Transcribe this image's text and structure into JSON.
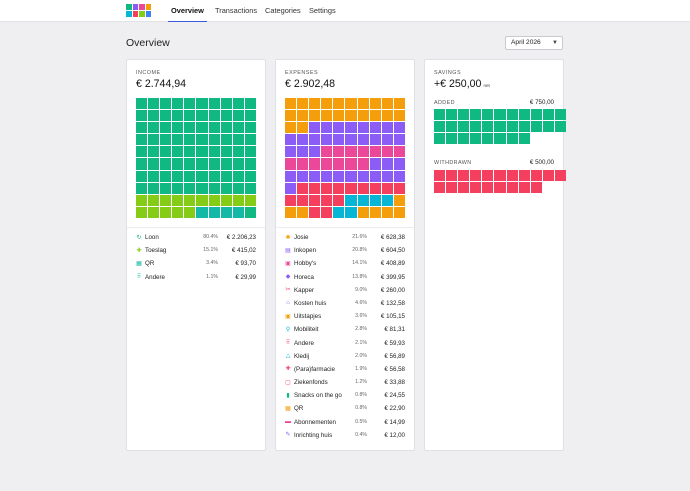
{
  "nav": {
    "tabs": [
      "Overview",
      "Transactions",
      "Categories",
      "Settings"
    ],
    "active": 0
  },
  "page": {
    "title": "Overview",
    "month": "April 2026"
  },
  "colors": {
    "green": "#10b981",
    "lime": "#84cc16",
    "orange": "#f59e0b",
    "purple": "#8b5cf6",
    "pink": "#ec4899",
    "red": "#f43f5e",
    "cyan": "#06b6d4",
    "teal": "#14b8a6"
  },
  "income": {
    "label": "INCOME",
    "total": "€ 2.744,94",
    "cells": [
      {
        "color": "#10b981",
        "count": 80
      },
      {
        "color": "#84cc16",
        "count": 15
      },
      {
        "color": "#14b8a6",
        "count": 4
      },
      {
        "color": "#10b981",
        "count": 1
      }
    ],
    "rows": [
      {
        "icon": "↻",
        "icon_name": "refresh-icon",
        "color": "#10b981",
        "name": "Loon",
        "pct": "80.4%",
        "amount": "€ 2.206,23"
      },
      {
        "icon": "✚",
        "icon_name": "plus-icon",
        "color": "#84cc16",
        "name": "Toeslag",
        "pct": "15.1%",
        "amount": "€ 415,02"
      },
      {
        "icon": "▦",
        "icon_name": "qr-icon",
        "color": "#14b8a6",
        "name": "QR",
        "pct": "3.4%",
        "amount": "€ 93,70"
      },
      {
        "icon": "⠿",
        "icon_name": "dots-icon",
        "color": "#14b8a6",
        "name": "Andere",
        "pct": "1.1%",
        "amount": "€ 29,99"
      }
    ]
  },
  "expenses": {
    "label": "EXPENSES",
    "total": "€ 2.902,48",
    "cells": [
      {
        "color": "#f59e0b",
        "count": 22
      },
      {
        "color": "#8b5cf6",
        "count": 21
      },
      {
        "color": "#ec4899",
        "count": 14
      },
      {
        "color": "#8b5cf6",
        "count": 14
      },
      {
        "color": "#f43f5e",
        "count": 9
      },
      {
        "color": "#f43f5e",
        "count": 5
      },
      {
        "color": "#06b6d4",
        "count": 4
      },
      {
        "color": "#f59e0b",
        "count": 3
      },
      {
        "color": "#f43f5e",
        "count": 2
      },
      {
        "color": "#06b6d4",
        "count": 2
      },
      {
        "color": "#f59e0b",
        "count": 4
      }
    ],
    "rows": [
      {
        "icon": "✱",
        "icon_name": "sun-icon",
        "color": "#f59e0b",
        "name": "Josie",
        "pct": "21.6%",
        "amount": "€ 628,38"
      },
      {
        "icon": "▤",
        "icon_name": "cart-icon",
        "color": "#8b5cf6",
        "name": "Inkopen",
        "pct": "20.8%",
        "amount": "€ 604,50"
      },
      {
        "icon": "▣",
        "icon_name": "hobby-icon",
        "color": "#ec4899",
        "name": "Hobby's",
        "pct": "14.1%",
        "amount": "€ 408,89"
      },
      {
        "icon": "◆",
        "icon_name": "horeca-icon",
        "color": "#8b5cf6",
        "name": "Horeca",
        "pct": "13.8%",
        "amount": "€ 399,95"
      },
      {
        "icon": "✂",
        "icon_name": "scissors-icon",
        "color": "#f43f5e",
        "name": "Kapper",
        "pct": "9.0%",
        "amount": "€ 260,00"
      },
      {
        "icon": "⌂",
        "icon_name": "house-icon",
        "color": "#8b5cf6",
        "name": "Kosten huis",
        "pct": "4.6%",
        "amount": "€ 132,58"
      },
      {
        "icon": "▣",
        "icon_name": "ticket-icon",
        "color": "#f59e0b",
        "name": "Uitstapjes",
        "pct": "3.6%",
        "amount": "€ 105,15"
      },
      {
        "icon": "⚲",
        "icon_name": "location-icon",
        "color": "#06b6d4",
        "name": "Mobiliteit",
        "pct": "2.8%",
        "amount": "€ 81,31"
      },
      {
        "icon": "⠿",
        "icon_name": "dots-icon",
        "color": "#f43f5e",
        "name": "Andere",
        "pct": "2.1%",
        "amount": "€ 59,93"
      },
      {
        "icon": "△",
        "icon_name": "hanger-icon",
        "color": "#06b6d4",
        "name": "Kledij",
        "pct": "2.0%",
        "amount": "€ 56,89"
      },
      {
        "icon": "✚",
        "icon_name": "medical-icon",
        "color": "#f43f5e",
        "name": "(Para)farmacie",
        "pct": "1.9%",
        "amount": "€ 56,58"
      },
      {
        "icon": "▢",
        "icon_name": "health-fund-icon",
        "color": "#f43f5e",
        "name": "Ziekenfonds",
        "pct": "1.2%",
        "amount": "€ 33,88"
      },
      {
        "icon": "▮",
        "icon_name": "bottle-icon",
        "color": "#10b981",
        "name": "Snacks on the go",
        "pct": "0.8%",
        "amount": "€ 24,55"
      },
      {
        "icon": "▦",
        "icon_name": "qr-icon",
        "color": "#f59e0b",
        "name": "QR",
        "pct": "0.8%",
        "amount": "€ 22,90"
      },
      {
        "icon": "▬",
        "icon_name": "card-icon",
        "color": "#ec4899",
        "name": "Abonnementen",
        "pct": "0.5%",
        "amount": "€ 14,99"
      },
      {
        "icon": "✎",
        "icon_name": "brush-icon",
        "color": "#8b5cf6",
        "name": "Inrichting huis",
        "pct": "0.4%",
        "amount": "€ 12,00"
      }
    ]
  },
  "savings": {
    "label": "SAVINGS",
    "total": "+€ 250,00",
    "total_suffix": "net",
    "added": {
      "label": "ADDED",
      "amount": "€ 750,00",
      "color": "#10b981",
      "count": 30
    },
    "withdrawn": {
      "label": "WITHDRAWN",
      "amount": "€ 500,00",
      "color": "#f43f5e",
      "count": 20
    }
  }
}
